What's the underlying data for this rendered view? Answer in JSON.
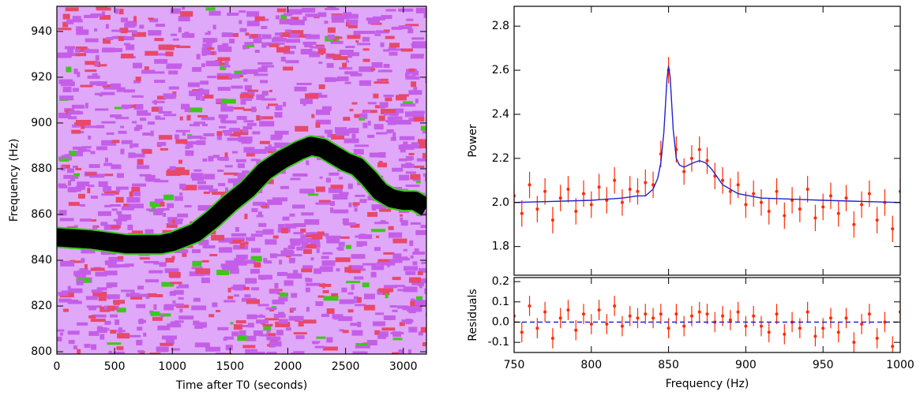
{
  "chart_data": [
    {
      "type": "heatmap",
      "xlabel": "Time after T0 (seconds)",
      "ylabel": "Frequency (Hz)",
      "x": [
        0,
        300,
        600,
        900,
        1000,
        1200,
        1350,
        1500,
        1650,
        1800,
        1950,
        2100,
        2200,
        2300,
        2400,
        2500,
        2600,
        2700,
        2800,
        2900,
        3000,
        3100,
        3200
      ],
      "values": [
        850,
        849,
        847,
        847,
        848,
        852,
        858,
        865,
        871,
        879,
        884,
        888,
        890,
        889,
        886,
        883,
        881,
        876,
        870,
        867,
        866,
        866,
        863
      ],
      "color": "#000000",
      "colors": [
        "#e0a8f8",
        "#c45ee8",
        "#e8486a",
        "#3cc81a"
      ],
      "xlim": [
        0,
        3200
      ],
      "ylim": [
        799,
        951
      ],
      "xticks": [
        0,
        500,
        1000,
        1500,
        2000,
        2500,
        3000
      ],
      "yticks": [
        800,
        820,
        840,
        860,
        880,
        900,
        920,
        940
      ]
    },
    {
      "type": "errorbar",
      "ylabel": "Power",
      "x": [
        750,
        755,
        760,
        765,
        770,
        775,
        780,
        785,
        790,
        795,
        800,
        805,
        810,
        815,
        820,
        825,
        830,
        835,
        840,
        845,
        850,
        855,
        860,
        865,
        870,
        875,
        880,
        885,
        890,
        895,
        900,
        905,
        910,
        915,
        920,
        925,
        930,
        935,
        940,
        945,
        950,
        955,
        960,
        965,
        970,
        975,
        980,
        985,
        990,
        995,
        1000
      ],
      "series": [
        {
          "style": "errorbar",
          "color": "#ff2a00",
          "error": 0.06,
          "values": [
            2.03,
            1.95,
            2.08,
            1.97,
            2.05,
            1.92,
            2.02,
            2.06,
            1.96,
            2.04,
            1.99,
            2.07,
            2.01,
            2.1,
            2.0,
            2.06,
            2.05,
            2.09,
            2.08,
            2.22,
            2.6,
            2.24,
            2.14,
            2.2,
            2.24,
            2.19,
            2.12,
            2.1,
            2.05,
            2.08,
            1.99,
            2.04,
            2.0,
            1.96,
            2.05,
            1.94,
            2.01,
            1.97,
            2.06,
            1.93,
            1.98,
            2.03,
            1.95,
            2.02,
            1.9,
            1.99,
            2.04,
            1.92,
            2.0,
            1.88,
            2.05
          ]
        },
        {
          "style": "line",
          "color": "#2222cc",
          "x": [
            750,
            800,
            820,
            830,
            835,
            840,
            843,
            845,
            847,
            849,
            850,
            851,
            853,
            855,
            857,
            860,
            863,
            866,
            870,
            874,
            878,
            885,
            895,
            910,
            950,
            1000
          ],
          "values": [
            2.0,
            2.01,
            2.02,
            2.03,
            2.03,
            2.06,
            2.11,
            2.18,
            2.32,
            2.56,
            2.62,
            2.57,
            2.33,
            2.2,
            2.17,
            2.16,
            2.17,
            2.18,
            2.19,
            2.18,
            2.15,
            2.08,
            2.04,
            2.02,
            2.01,
            2.0
          ]
        }
      ],
      "xlim": [
        750,
        1000
      ],
      "ylim": [
        1.67,
        2.89
      ],
      "yticks": [
        1.8,
        {
          "value": 2,
          "label": "2.0"
        },
        2.2,
        2.4,
        2.6,
        2.8
      ]
    },
    {
      "type": "errorbar",
      "xlabel": "Frequency (Hz)",
      "ylabel": "Residuals",
      "x": [
        750,
        755,
        760,
        765,
        770,
        775,
        780,
        785,
        790,
        795,
        800,
        805,
        810,
        815,
        820,
        825,
        830,
        835,
        840,
        845,
        850,
        855,
        860,
        865,
        870,
        875,
        880,
        885,
        890,
        895,
        900,
        905,
        910,
        915,
        920,
        925,
        930,
        935,
        940,
        945,
        950,
        955,
        960,
        965,
        970,
        975,
        980,
        985,
        990,
        995,
        1000
      ],
      "series": [
        {
          "style": "errorbar",
          "color": "#ff2a00",
          "error": 0.05,
          "values": [
            0.03,
            -0.05,
            0.08,
            -0.03,
            0.05,
            -0.08,
            0.02,
            0.06,
            -0.04,
            0.04,
            -0.01,
            0.06,
            -0.01,
            0.08,
            -0.02,
            0.03,
            0.02,
            0.04,
            0.02,
            0.04,
            -0.03,
            0.04,
            -0.02,
            0.03,
            0.05,
            0.04,
            0,
            0.03,
            0.01,
            0.05,
            -0.02,
            0.03,
            -0.02,
            -0.05,
            0.04,
            -0.06,
            0,
            -0.03,
            0.05,
            -0.07,
            -0.03,
            0.02,
            -0.05,
            0.02,
            -0.1,
            -0.01,
            0.04,
            -0.08,
            0,
            -0.12,
            0.05
          ]
        },
        {
          "style": "dashed",
          "color": "#2222cc",
          "x": [
            750,
            1000
          ],
          "values": [
            0,
            0
          ]
        }
      ],
      "xlim": [
        750,
        1000
      ],
      "ylim": [
        -0.15,
        0.22
      ],
      "xticks": [
        750,
        800,
        850,
        900,
        950,
        1000
      ],
      "yticks": [
        -0.1,
        {
          "value": 0,
          "label": "0.0"
        },
        0.1,
        0.2
      ]
    }
  ]
}
